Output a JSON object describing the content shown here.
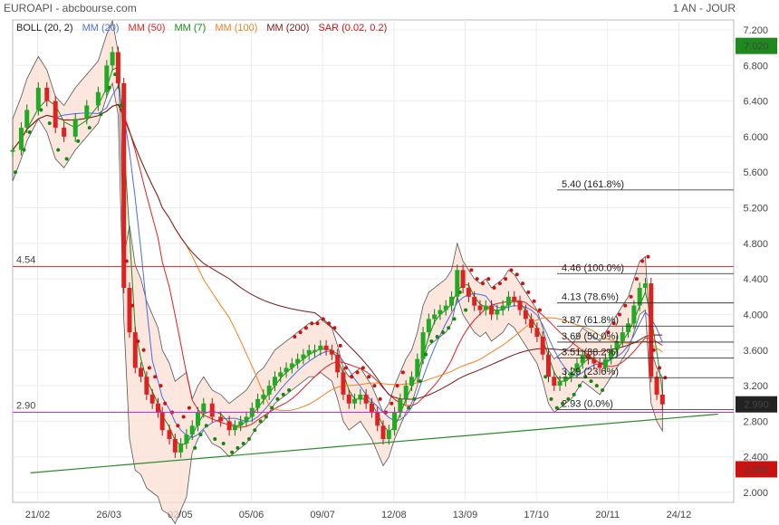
{
  "header": {
    "title": "EUROAPI - abcbourse.com",
    "period": "1 AN - JOUR"
  },
  "legend": [
    {
      "label": "BOLL (20, 2)",
      "color": "#222222"
    },
    {
      "label": "MM (20)",
      "color": "#4a6fe0"
    },
    {
      "label": "MM (50)",
      "color": "#e02020"
    },
    {
      "label": "MM (7)",
      "color": "#1a8a1a"
    },
    {
      "label": "MM (100)",
      "color": "#f08020"
    },
    {
      "label": "MM (200)",
      "color": "#7a1a1a"
    },
    {
      "label": "SAR (0.02, 0.2)",
      "color": "#d01010"
    }
  ],
  "chart_data": {
    "type": "candlestick",
    "ylim": [
      2.0,
      7.2
    ],
    "y_ticks": [
      "7.200",
      "6.800",
      "6.400",
      "6.000",
      "5.600",
      "5.200",
      "4.800",
      "4.400",
      "4.000",
      "3.600",
      "3.200",
      "2.800",
      "2.400",
      "2.000"
    ],
    "x_ticks": [
      "21/02",
      "26/03",
      "02/05",
      "05/06",
      "09/07",
      "12/08",
      "13/09",
      "17/10",
      "20/11",
      "24/12"
    ],
    "last_price": "2.990",
    "high_badge": "7.020",
    "low_badge": "2.260",
    "horizontal_lines": [
      {
        "label": "4.54",
        "value": 4.54,
        "color": "#c03030"
      },
      {
        "label": "2.90",
        "value": 2.9,
        "color": "#e020e0"
      }
    ],
    "fibonacci": [
      {
        "label": "5.40  (161.8%)",
        "value": 5.4
      },
      {
        "label": "4.46  (100.0%)",
        "value": 4.46
      },
      {
        "label": "4.13  (78.6%)",
        "value": 4.13
      },
      {
        "label": "3.87  (61.8%)",
        "value": 3.87
      },
      {
        "label": "3.69  (50.0%)",
        "value": 3.69
      },
      {
        "label": "3.51  (38.2%)",
        "value": 3.51
      },
      {
        "label": "3.29  (23.6%)",
        "value": 3.29
      },
      {
        "label": "2.93  (0.0%)",
        "value": 2.93
      }
    ],
    "trendline": {
      "from": [
        0.25,
        2.22
      ],
      "to": [
        9.9,
        2.88
      ]
    },
    "close": [
      [
        0,
        5.85
      ],
      [
        0.3,
        6.1
      ],
      [
        0.5,
        6.3
      ],
      [
        0.9,
        6.55
      ],
      [
        1.2,
        6.4
      ],
      [
        1.5,
        6.1
      ],
      [
        1.8,
        6.0
      ],
      [
        2.2,
        6.2
      ],
      [
        2.6,
        6.35
      ],
      [
        3.0,
        6.5
      ],
      [
        3.3,
        6.8
      ],
      [
        3.5,
        6.95
      ],
      [
        3.7,
        6.6
      ],
      [
        3.9,
        4.3
      ],
      [
        4.1,
        3.8
      ],
      [
        4.3,
        3.4
      ],
      [
        4.5,
        3.3
      ],
      [
        4.7,
        3.1
      ],
      [
        4.9,
        3.0
      ],
      [
        5.1,
        2.9
      ],
      [
        5.25,
        2.7
      ],
      [
        5.5,
        2.6
      ],
      [
        5.7,
        2.45
      ],
      [
        5.9,
        2.55
      ],
      [
        6.1,
        2.65
      ],
      [
        6.3,
        2.75
      ],
      [
        6.5,
        2.9
      ],
      [
        6.7,
        3.0
      ],
      [
        7.0,
        2.85
      ],
      [
        7.3,
        2.8
      ],
      [
        7.6,
        2.7
      ],
      [
        7.8,
        2.75
      ],
      [
        8.0,
        2.8
      ],
      [
        8.2,
        2.85
      ],
      [
        8.4,
        2.95
      ],
      [
        8.6,
        3.05
      ],
      [
        8.8,
        3.1
      ],
      [
        9.0,
        3.2
      ],
      [
        9.2,
        3.3
      ],
      [
        9.4,
        3.35
      ],
      [
        9.6,
        3.4
      ],
      [
        9.8,
        3.45
      ],
      [
        10.0,
        3.5
      ],
      [
        10.2,
        3.55
      ],
      [
        10.4,
        3.6
      ],
      [
        10.6,
        3.6
      ],
      [
        10.8,
        3.65
      ],
      [
        11.0,
        3.6
      ],
      [
        11.2,
        3.55
      ],
      [
        11.4,
        3.35
      ],
      [
        11.6,
        3.1
      ],
      [
        11.8,
        3.0
      ],
      [
        12.0,
        3.05
      ],
      [
        12.2,
        3.1
      ],
      [
        12.4,
        3.0
      ],
      [
        12.6,
        2.9
      ],
      [
        12.8,
        2.75
      ],
      [
        13.0,
        2.6
      ],
      [
        13.2,
        2.7
      ],
      [
        13.4,
        2.9
      ],
      [
        13.6,
        3.05
      ],
      [
        13.8,
        3.2
      ],
      [
        14.0,
        3.3
      ],
      [
        14.2,
        3.5
      ],
      [
        14.4,
        3.8
      ],
      [
        14.6,
        3.95
      ],
      [
        14.8,
        4.0
      ],
      [
        15.0,
        4.05
      ],
      [
        15.2,
        4.1
      ],
      [
        15.4,
        4.2
      ],
      [
        15.6,
        4.5
      ],
      [
        15.8,
        4.3
      ],
      [
        16.0,
        4.2
      ],
      [
        16.2,
        4.1
      ],
      [
        16.4,
        4.05
      ],
      [
        16.6,
        4.1
      ],
      [
        16.8,
        4.0
      ],
      [
        17.0,
        4.05
      ],
      [
        17.2,
        4.1
      ],
      [
        17.4,
        4.2
      ],
      [
        17.6,
        4.15
      ],
      [
        17.8,
        4.05
      ],
      [
        18.0,
        3.95
      ],
      [
        18.2,
        3.85
      ],
      [
        18.4,
        3.75
      ],
      [
        18.6,
        3.55
      ],
      [
        18.8,
        3.3
      ],
      [
        19.0,
        3.2
      ],
      [
        19.2,
        3.25
      ],
      [
        19.4,
        3.3
      ],
      [
        19.6,
        3.35
      ],
      [
        19.8,
        3.45
      ],
      [
        20.0,
        3.55
      ],
      [
        20.2,
        3.5
      ],
      [
        20.4,
        3.45
      ],
      [
        20.6,
        3.4
      ],
      [
        20.8,
        3.5
      ],
      [
        21.0,
        3.6
      ],
      [
        21.2,
        3.7
      ],
      [
        21.4,
        3.8
      ],
      [
        21.6,
        3.9
      ],
      [
        21.8,
        4.1
      ],
      [
        22.0,
        4.3
      ],
      [
        22.2,
        4.35
      ],
      [
        22.4,
        3.3
      ],
      [
        22.6,
        3.1
      ],
      [
        22.8,
        2.99
      ]
    ]
  }
}
